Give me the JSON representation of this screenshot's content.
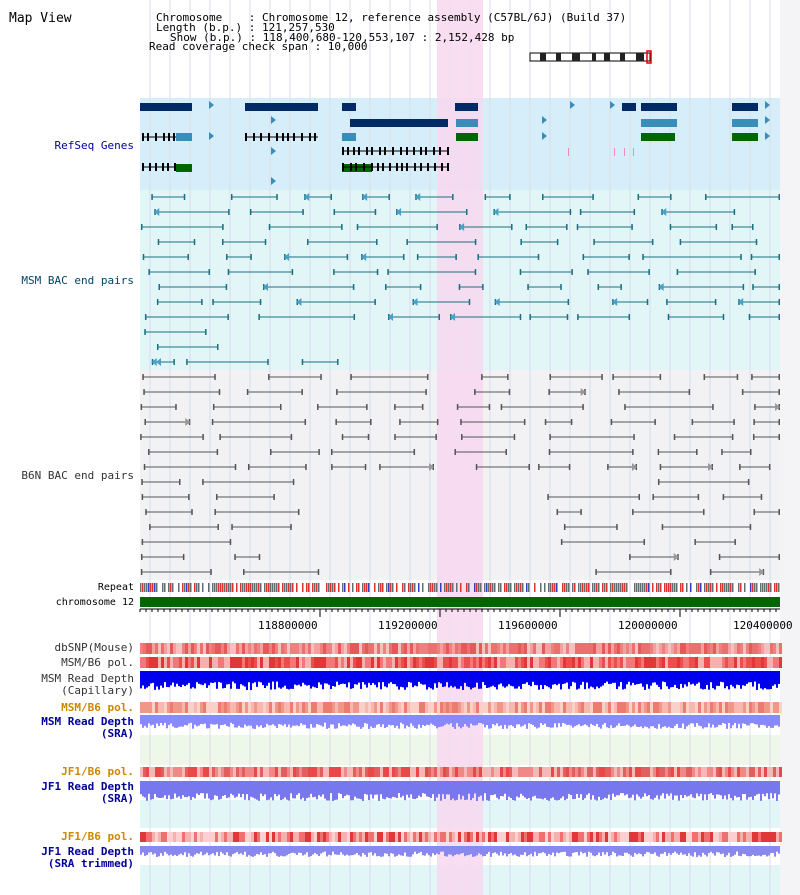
{
  "title": "Map View",
  "header": {
    "chromosome": "Chromosome    : Chromosome 12, reference assembly (C57BL/6J) (Build 37)",
    "length": "Length (b.p.) : 121,257,530",
    "show": "Show (b.p.) : 118,400,680-120,553,107 : 2,152,428 bp",
    "coverage": "Read coverage check span : 10,000"
  },
  "tracks": {
    "refseq": "RefSeq Genes",
    "msm_bac": "MSM BAC end pairs",
    "b6n_bac": "B6N BAC end pairs",
    "repeat": "Repeat",
    "chromosome": "chromosome 12",
    "dbsnp": "dbSNP(Mouse)",
    "msm_b6_pol": "MSM/B6 pol.",
    "msm_depth_cap_1": "MSM Read Depth",
    "msm_depth_cap_2": "(Capillary)",
    "msm_b6_pol2": "MSM/B6 pol.",
    "msm_depth_sra_1": "MSM Read Depth",
    "msm_depth_sra_2": "(SRA)",
    "jf1_pol": "JF1/B6 pol.",
    "jf1_depth_1": "JF1 Read Depth",
    "jf1_depth_2": "(SRA)",
    "jf1_pol2": "JF1/B6 pol.",
    "jf1_trim_1": "JF1 Read Depth",
    "jf1_trim_2": "(SRA trimmed)"
  },
  "axis": {
    "ticks": [
      "118800000",
      "119200000",
      "119600000",
      "120000000",
      "120400000"
    ]
  },
  "colors": {
    "refseq_bg": "#d6eefa",
    "msm_bg": "#e2f6f8",
    "b6n_bg": "#f2f2f5",
    "highlight": "#f8d8f0",
    "chrom_green": "#006600",
    "gene_navy": "#002a66",
    "gene_blue": "#3a8db8",
    "gene_green": "#006600",
    "msm_line": "#1a7080",
    "label_blue": "#000099",
    "label_orange": "#cc8800"
  }
}
